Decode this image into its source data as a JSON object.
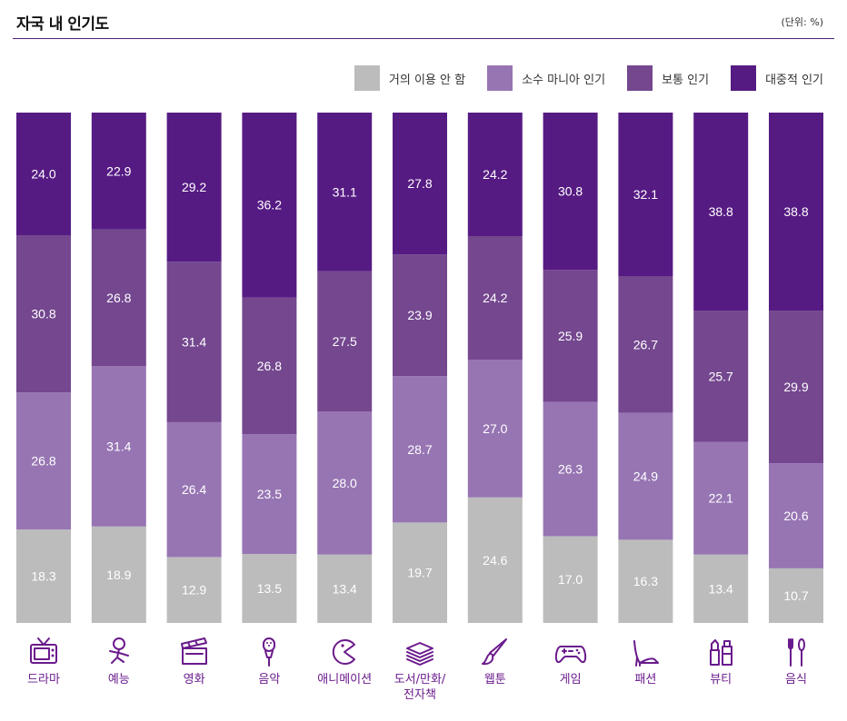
{
  "header": {
    "title": "자국 내 인기도",
    "unit": "(단위: %)"
  },
  "colors": {
    "rarely": "#bcbcbc",
    "niche": "#9775b3",
    "moderate": "#74478f",
    "popular": "#561b83",
    "label": "#6a1a8c",
    "rule": "#4a2577"
  },
  "chart_data": {
    "type": "bar",
    "stacked": true,
    "normalized": true,
    "title": "자국 내 인기도",
    "unit": "(단위: %)",
    "categories": [
      "드라마",
      "예능",
      "영화",
      "음악",
      "애니메이션",
      "도서/만화/\n전자책",
      "웹툰",
      "게임",
      "패션",
      "뷰티",
      "음식"
    ],
    "icons": [
      "tv-icon",
      "dancing-person-icon",
      "clapperboard-icon",
      "microphone-icon",
      "pacman-icon",
      "books-icon",
      "brush-icon",
      "gamepad-icon",
      "high-heel-icon",
      "cosmetics-icon",
      "utensils-icon"
    ],
    "series": [
      {
        "name": "거의 이용 안 함",
        "color": "#bcbcbc",
        "values": [
          18.3,
          18.9,
          12.9,
          13.5,
          13.4,
          19.7,
          24.6,
          17.0,
          16.3,
          13.4,
          10.7
        ]
      },
      {
        "name": "소수 마니아 인기",
        "color": "#9775b3",
        "values": [
          26.8,
          31.4,
          26.4,
          23.5,
          28.0,
          28.7,
          27.0,
          26.3,
          24.9,
          22.1,
          20.6
        ]
      },
      {
        "name": "보통 인기",
        "color": "#74478f",
        "values": [
          30.8,
          26.8,
          31.4,
          26.8,
          27.5,
          23.9,
          24.2,
          25.9,
          26.7,
          25.7,
          29.9
        ]
      },
      {
        "name": "대중적 인기",
        "color": "#561b83",
        "values": [
          24.0,
          22.9,
          29.2,
          36.2,
          31.1,
          27.8,
          24.2,
          30.8,
          32.1,
          38.8,
          38.8
        ]
      }
    ],
    "legend_position": "top-right",
    "grid": false
  }
}
